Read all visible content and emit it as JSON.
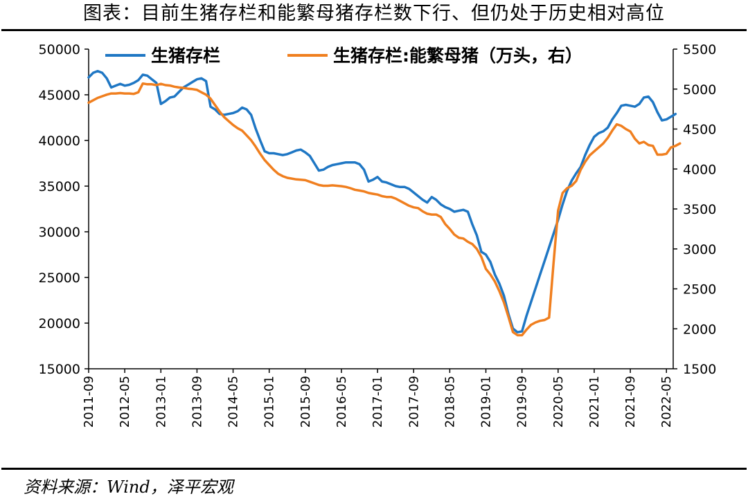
{
  "header": {
    "title": "图表：目前生猪存栏和能繁母猪存栏数下行、但仍处于历史相对高位"
  },
  "footer": {
    "source": "资料来源：Wind，泽平宏观"
  },
  "chart_data": {
    "type": "line",
    "title": "",
    "xlabel": "",
    "ylabel": "",
    "x_tick_labels": [
      "2011-09",
      "2012-05",
      "2013-01",
      "2013-09",
      "2014-05",
      "2015-01",
      "2015-09",
      "2016-05",
      "2017-01",
      "2017-09",
      "2018-05",
      "2019-01",
      "2019-09",
      "2020-05",
      "2021-01",
      "2021-09",
      "2022-05"
    ],
    "y_left_ticks": [
      "15000",
      "20000",
      "25000",
      "30000",
      "35000",
      "40000",
      "45000",
      "50000"
    ],
    "y_right_ticks": [
      "1500",
      "2000",
      "2500",
      "3000",
      "3500",
      "4000",
      "4500",
      "5000",
      "5500"
    ],
    "ylim_left": [
      15000,
      50000
    ],
    "ylim_right": [
      1500,
      5500
    ],
    "x_range": [
      "2011-09",
      "2022-06"
    ],
    "grid": false,
    "legend_position": "top",
    "series": [
      {
        "name": "生猪存栏",
        "axis": "left",
        "color": "#1f77c4",
        "points": [
          [
            "2011-09",
            46900
          ],
          [
            "2011-10",
            47400
          ],
          [
            "2011-11",
            47600
          ],
          [
            "2011-12",
            47400
          ],
          [
            "2012-01",
            46800
          ],
          [
            "2012-02",
            45800
          ],
          [
            "2012-03",
            46000
          ],
          [
            "2012-04",
            46200
          ],
          [
            "2012-05",
            46000
          ],
          [
            "2012-06",
            46100
          ],
          [
            "2012-07",
            46300
          ],
          [
            "2012-08",
            46600
          ],
          [
            "2012-09",
            47200
          ],
          [
            "2012-10",
            47100
          ],
          [
            "2012-11",
            46700
          ],
          [
            "2012-12",
            46300
          ],
          [
            "2013-01",
            44000
          ],
          [
            "2013-02",
            44300
          ],
          [
            "2013-03",
            44700
          ],
          [
            "2013-04",
            44800
          ],
          [
            "2013-05",
            45300
          ],
          [
            "2013-06",
            45800
          ],
          [
            "2013-07",
            46100
          ],
          [
            "2013-08",
            46400
          ],
          [
            "2013-09",
            46700
          ],
          [
            "2013-10",
            46800
          ],
          [
            "2013-11",
            46500
          ],
          [
            "2013-12",
            43700
          ],
          [
            "2014-01",
            43400
          ],
          [
            "2014-02",
            42900
          ],
          [
            "2014-03",
            42800
          ],
          [
            "2014-04",
            42900
          ],
          [
            "2014-05",
            43000
          ],
          [
            "2014-06",
            43200
          ],
          [
            "2014-07",
            43600
          ],
          [
            "2014-08",
            43400
          ],
          [
            "2014-09",
            42800
          ],
          [
            "2014-10",
            41300
          ],
          [
            "2014-11",
            40000
          ],
          [
            "2014-12",
            38800
          ],
          [
            "2015-01",
            38600
          ],
          [
            "2015-02",
            38600
          ],
          [
            "2015-03",
            38500
          ],
          [
            "2015-04",
            38400
          ],
          [
            "2015-05",
            38500
          ],
          [
            "2015-06",
            38700
          ],
          [
            "2015-07",
            38900
          ],
          [
            "2015-08",
            39000
          ],
          [
            "2015-09",
            38700
          ],
          [
            "2015-10",
            38300
          ],
          [
            "2015-11",
            37500
          ],
          [
            "2015-12",
            36700
          ],
          [
            "2016-01",
            36800
          ],
          [
            "2016-02",
            37100
          ],
          [
            "2016-03",
            37300
          ],
          [
            "2016-04",
            37400
          ],
          [
            "2016-05",
            37500
          ],
          [
            "2016-06",
            37600
          ],
          [
            "2016-07",
            37600
          ],
          [
            "2016-08",
            37600
          ],
          [
            "2016-09",
            37400
          ],
          [
            "2016-10",
            36800
          ],
          [
            "2016-11",
            35500
          ],
          [
            "2016-12",
            35700
          ],
          [
            "2017-01",
            36000
          ],
          [
            "2017-02",
            35500
          ],
          [
            "2017-03",
            35400
          ],
          [
            "2017-04",
            35200
          ],
          [
            "2017-05",
            35000
          ],
          [
            "2017-06",
            34900
          ],
          [
            "2017-07",
            34900
          ],
          [
            "2017-08",
            34700
          ],
          [
            "2017-09",
            34300
          ],
          [
            "2017-10",
            33900
          ],
          [
            "2017-11",
            33500
          ],
          [
            "2017-12",
            33200
          ],
          [
            "2018-01",
            33800
          ],
          [
            "2018-02",
            33500
          ],
          [
            "2018-03",
            33000
          ],
          [
            "2018-04",
            32700
          ],
          [
            "2018-05",
            32500
          ],
          [
            "2018-06",
            32200
          ],
          [
            "2018-07",
            32300
          ],
          [
            "2018-08",
            32400
          ],
          [
            "2018-09",
            32200
          ],
          [
            "2018-10",
            30800
          ],
          [
            "2018-11",
            29600
          ],
          [
            "2018-12",
            27800
          ],
          [
            "2019-01",
            27500
          ],
          [
            "2019-02",
            26700
          ],
          [
            "2019-03",
            25300
          ],
          [
            "2019-04",
            24300
          ],
          [
            "2019-05",
            23000
          ],
          [
            "2019-06",
            21000
          ],
          [
            "2019-07",
            19400
          ],
          [
            "2019-08",
            19000
          ],
          [
            "2019-09",
            19100
          ],
          [
            "2019-10",
            20800
          ],
          [
            "2019-11",
            22300
          ],
          [
            "2019-12",
            23800
          ],
          [
            "2020-01",
            25300
          ],
          [
            "2020-02",
            26800
          ],
          [
            "2020-03",
            28300
          ],
          [
            "2020-04",
            29800
          ],
          [
            "2020-05",
            31300
          ],
          [
            "2020-06",
            33000
          ],
          [
            "2020-07",
            34500
          ],
          [
            "2020-08",
            35600
          ],
          [
            "2020-09",
            36400
          ],
          [
            "2020-10",
            37100
          ],
          [
            "2020-11",
            38400
          ],
          [
            "2020-12",
            39500
          ],
          [
            "2021-01",
            40400
          ],
          [
            "2021-02",
            40800
          ],
          [
            "2021-03",
            41000
          ],
          [
            "2021-04",
            41400
          ],
          [
            "2021-05",
            42300
          ],
          [
            "2021-06",
            43000
          ],
          [
            "2021-07",
            43800
          ],
          [
            "2021-08",
            43900
          ],
          [
            "2021-09",
            43800
          ],
          [
            "2021-10",
            43700
          ],
          [
            "2021-11",
            44000
          ],
          [
            "2021-12",
            44700
          ],
          [
            "2022-01",
            44800
          ],
          [
            "2022-02",
            44200
          ],
          [
            "2022-03",
            43100
          ],
          [
            "2022-04",
            42200
          ],
          [
            "2022-05",
            42300
          ],
          [
            "2022-06",
            42600
          ],
          [
            "2022-07",
            42900
          ]
        ]
      },
      {
        "name": "生猪存栏:能繁母猪（万头，右）",
        "axis": "right",
        "color": "#f07f1f",
        "points": [
          [
            "2011-09",
            4830
          ],
          [
            "2011-10",
            4860
          ],
          [
            "2011-11",
            4890
          ],
          [
            "2011-12",
            4910
          ],
          [
            "2012-01",
            4930
          ],
          [
            "2012-02",
            4945
          ],
          [
            "2012-03",
            4945
          ],
          [
            "2012-04",
            4950
          ],
          [
            "2012-05",
            4945
          ],
          [
            "2012-06",
            4945
          ],
          [
            "2012-07",
            4940
          ],
          [
            "2012-08",
            4960
          ],
          [
            "2012-09",
            5070
          ],
          [
            "2012-10",
            5060
          ],
          [
            "2012-11",
            5060
          ],
          [
            "2012-12",
            5050
          ],
          [
            "2013-01",
            5065
          ],
          [
            "2013-02",
            5050
          ],
          [
            "2013-03",
            5045
          ],
          [
            "2013-04",
            5030
          ],
          [
            "2013-05",
            5020
          ],
          [
            "2013-06",
            5015
          ],
          [
            "2013-07",
            5005
          ],
          [
            "2013-08",
            5000
          ],
          [
            "2013-09",
            4990
          ],
          [
            "2013-10",
            4960
          ],
          [
            "2013-11",
            4930
          ],
          [
            "2013-12",
            4880
          ],
          [
            "2014-01",
            4800
          ],
          [
            "2014-02",
            4720
          ],
          [
            "2014-03",
            4650
          ],
          [
            "2014-04",
            4600
          ],
          [
            "2014-05",
            4550
          ],
          [
            "2014-06",
            4510
          ],
          [
            "2014-07",
            4480
          ],
          [
            "2014-08",
            4420
          ],
          [
            "2014-09",
            4360
          ],
          [
            "2014-10",
            4280
          ],
          [
            "2014-11",
            4190
          ],
          [
            "2014-12",
            4110
          ],
          [
            "2015-01",
            4050
          ],
          [
            "2015-02",
            3990
          ],
          [
            "2015-03",
            3940
          ],
          [
            "2015-04",
            3910
          ],
          [
            "2015-05",
            3890
          ],
          [
            "2015-06",
            3880
          ],
          [
            "2015-07",
            3870
          ],
          [
            "2015-08",
            3865
          ],
          [
            "2015-09",
            3860
          ],
          [
            "2015-10",
            3840
          ],
          [
            "2015-11",
            3820
          ],
          [
            "2015-12",
            3800
          ],
          [
            "2016-01",
            3790
          ],
          [
            "2016-02",
            3790
          ],
          [
            "2016-03",
            3795
          ],
          [
            "2016-04",
            3790
          ],
          [
            "2016-05",
            3785
          ],
          [
            "2016-06",
            3775
          ],
          [
            "2016-07",
            3760
          ],
          [
            "2016-08",
            3740
          ],
          [
            "2016-09",
            3730
          ],
          [
            "2016-10",
            3720
          ],
          [
            "2016-11",
            3700
          ],
          [
            "2016-12",
            3690
          ],
          [
            "2017-01",
            3680
          ],
          [
            "2017-02",
            3660
          ],
          [
            "2017-03",
            3650
          ],
          [
            "2017-04",
            3650
          ],
          [
            "2017-05",
            3630
          ],
          [
            "2017-06",
            3600
          ],
          [
            "2017-07",
            3570
          ],
          [
            "2017-08",
            3540
          ],
          [
            "2017-09",
            3520
          ],
          [
            "2017-10",
            3510
          ],
          [
            "2017-11",
            3470
          ],
          [
            "2017-12",
            3440
          ],
          [
            "2018-01",
            3430
          ],
          [
            "2018-02",
            3430
          ],
          [
            "2018-03",
            3400
          ],
          [
            "2018-04",
            3310
          ],
          [
            "2018-05",
            3250
          ],
          [
            "2018-06",
            3180
          ],
          [
            "2018-07",
            3140
          ],
          [
            "2018-08",
            3130
          ],
          [
            "2018-09",
            3090
          ],
          [
            "2018-10",
            3060
          ],
          [
            "2018-11",
            3000
          ],
          [
            "2018-12",
            2900
          ],
          [
            "2019-01",
            2750
          ],
          [
            "2019-02",
            2680
          ],
          [
            "2019-03",
            2590
          ],
          [
            "2019-04",
            2470
          ],
          [
            "2019-05",
            2330
          ],
          [
            "2019-06",
            2150
          ],
          [
            "2019-07",
            1960
          ],
          [
            "2019-08",
            1920
          ],
          [
            "2019-09",
            1920
          ],
          [
            "2019-10",
            1990
          ],
          [
            "2019-11",
            2050
          ],
          [
            "2019-12",
            2080
          ],
          [
            "2020-01",
            2100
          ],
          [
            "2020-02",
            2110
          ],
          [
            "2020-03",
            2140
          ],
          [
            "2020-04",
            2830
          ],
          [
            "2020-05",
            3480
          ],
          [
            "2020-06",
            3700
          ],
          [
            "2020-07",
            3760
          ],
          [
            "2020-08",
            3790
          ],
          [
            "2020-09",
            3850
          ],
          [
            "2020-10",
            3990
          ],
          [
            "2020-11",
            4090
          ],
          [
            "2020-12",
            4170
          ],
          [
            "2021-01",
            4220
          ],
          [
            "2021-02",
            4270
          ],
          [
            "2021-03",
            4320
          ],
          [
            "2021-04",
            4390
          ],
          [
            "2021-05",
            4480
          ],
          [
            "2021-06",
            4560
          ],
          [
            "2021-07",
            4540
          ],
          [
            "2021-08",
            4500
          ],
          [
            "2021-09",
            4470
          ],
          [
            "2021-10",
            4380
          ],
          [
            "2021-11",
            4320
          ],
          [
            "2021-12",
            4340
          ],
          [
            "2022-01",
            4300
          ],
          [
            "2022-02",
            4290
          ],
          [
            "2022-03",
            4180
          ],
          [
            "2022-04",
            4180
          ],
          [
            "2022-05",
            4190
          ],
          [
            "2022-06",
            4270
          ],
          [
            "2022-07",
            4290
          ],
          [
            "2022-08",
            4320
          ]
        ]
      }
    ]
  }
}
